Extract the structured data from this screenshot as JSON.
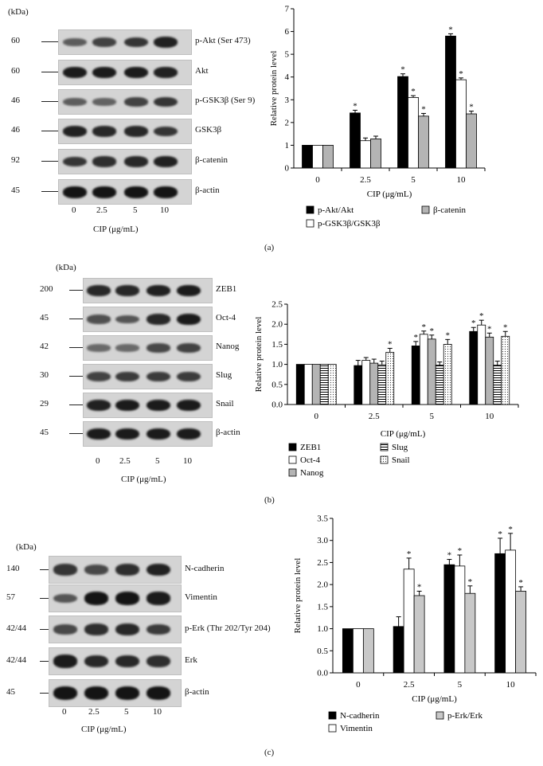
{
  "panels": [
    {
      "id": "a",
      "caption": "(a)",
      "blot": {
        "kda_header": "(kDa)",
        "rows": [
          {
            "kda": "60",
            "protein": "p-Akt (Ser 473)",
            "intensity": [
              0.45,
              0.65,
              0.75,
              0.9
            ]
          },
          {
            "kda": "60",
            "protein": "Akt",
            "intensity": [
              0.95,
              0.95,
              0.95,
              0.9
            ]
          },
          {
            "kda": "46",
            "protein": "p-GSK3β (Ser 9)",
            "intensity": [
              0.45,
              0.4,
              0.65,
              0.75
            ]
          },
          {
            "kda": "46",
            "protein": "GSK3β",
            "intensity": [
              0.9,
              0.85,
              0.85,
              0.75
            ]
          },
          {
            "kda": "92",
            "protein": "β-catenin",
            "intensity": [
              0.75,
              0.8,
              0.85,
              0.9
            ]
          },
          {
            "kda": "45",
            "protein": "β-actin",
            "intensity": [
              1,
              1,
              1,
              1
            ]
          }
        ],
        "lanes": [
          "0",
          "2.5",
          "5",
          "10"
        ],
        "xlabel": "CIP (μg/mL)"
      }
    },
    {
      "id": "b",
      "caption": "(b)",
      "blot": {
        "kda_header": "(kDa)",
        "rows": [
          {
            "kda": "200",
            "protein": "ZEB1",
            "intensity": [
              0.85,
              0.85,
              0.9,
              0.95
            ]
          },
          {
            "kda": "45",
            "protein": "Oct-4",
            "intensity": [
              0.55,
              0.5,
              0.85,
              0.95
            ]
          },
          {
            "kda": "42",
            "protein": "Nanog",
            "intensity": [
              0.35,
              0.35,
              0.6,
              0.65
            ]
          },
          {
            "kda": "30",
            "protein": "Slug",
            "intensity": [
              0.65,
              0.7,
              0.7,
              0.7
            ]
          },
          {
            "kda": "29",
            "protein": "Snail",
            "intensity": [
              0.9,
              0.95,
              0.95,
              0.95
            ]
          },
          {
            "kda": "45",
            "protein": "β-actin",
            "intensity": [
              0.95,
              0.95,
              0.95,
              0.95
            ]
          }
        ],
        "lanes": [
          "0",
          "2.5",
          "5",
          "10"
        ],
        "xlabel": "CIP (μg/mL)"
      }
    },
    {
      "id": "c",
      "caption": "(c)",
      "blot": {
        "kda_header": "(kDa)",
        "rows": [
          {
            "kda": "140",
            "protein": "N-cadherin",
            "intensity": [
              0.75,
              0.6,
              0.8,
              0.9
            ]
          },
          {
            "kda": "57",
            "protein": "Vimentin",
            "intensity": [
              0.5,
              1,
              1,
              0.95
            ]
          },
          {
            "kda": "42/44",
            "protein": "p-Erk (Thr 202/Tyr 204)",
            "intensity": [
              0.6,
              0.8,
              0.85,
              0.7
            ]
          },
          {
            "kda": "42/44",
            "protein": "Erk",
            "intensity": [
              0.95,
              0.85,
              0.85,
              0.8
            ]
          },
          {
            "kda": "45",
            "protein": "β-actin",
            "intensity": [
              1,
              1,
              1,
              1
            ]
          }
        ],
        "lanes": [
          "0",
          "2.5",
          "5",
          "10"
        ],
        "xlabel": "CIP (μg/mL)"
      }
    }
  ],
  "chart_data": [
    {
      "type": "bar",
      "panel": "a",
      "ylabel": "Relative protein level",
      "xlabel": "CIP (μg/mL)",
      "ylim": [
        0,
        7
      ],
      "yticks": [
        0,
        1,
        2,
        3,
        4,
        5,
        6,
        7
      ],
      "categories": [
        "0",
        "2.5",
        "5",
        "10"
      ],
      "series": [
        {
          "name": "p-Akt/Akt",
          "fill": "#000000",
          "pattern": "solid",
          "values": [
            1,
            2.42,
            4.02,
            5.8
          ],
          "errors": [
            0,
            0.12,
            0.12,
            0.1
          ],
          "sig": [
            false,
            true,
            true,
            true
          ]
        },
        {
          "name": "p-GSK3β/GSK3β",
          "fill": "#ffffff",
          "pattern": "solid",
          "values": [
            1,
            1.2,
            3.1,
            3.88
          ],
          "errors": [
            0,
            0.12,
            0.08,
            0.08
          ],
          "sig": [
            false,
            false,
            true,
            true
          ]
        },
        {
          "name": "β-catenin",
          "fill": "#b4b4b4",
          "pattern": "solid",
          "values": [
            1,
            1.28,
            2.28,
            2.38
          ],
          "errors": [
            0,
            0.12,
            0.12,
            0.12
          ],
          "sig": [
            false,
            false,
            true,
            true
          ]
        }
      ],
      "legend_order": [
        0,
        2,
        1
      ]
    },
    {
      "type": "bar",
      "panel": "b",
      "ylabel": "Relative protein level",
      "xlabel": "CIP (μg/mL)",
      "ylim": [
        0,
        2.5
      ],
      "yticks": [
        "0.0",
        "0.5",
        "1.0",
        "1.5",
        "2.0",
        "2.5"
      ],
      "categories": [
        "0",
        "2.5",
        "5",
        "10"
      ],
      "series": [
        {
          "name": "ZEB1",
          "fill": "#000000",
          "pattern": "solid",
          "values": [
            1,
            0.97,
            1.46,
            1.82
          ],
          "errors": [
            0,
            0.13,
            0.11,
            0.1
          ],
          "sig": [
            false,
            false,
            true,
            true
          ]
        },
        {
          "name": "Oct-4",
          "fill": "#ffffff",
          "pattern": "solid",
          "values": [
            1,
            1.1,
            1.75,
            1.98
          ],
          "errors": [
            0,
            0.07,
            0.08,
            0.12
          ],
          "sig": [
            false,
            false,
            true,
            true
          ]
        },
        {
          "name": "Nanog",
          "fill": "#b4b4b4",
          "pattern": "solid",
          "values": [
            1,
            1.03,
            1.63,
            1.68
          ],
          "errors": [
            0,
            0.1,
            0.1,
            0.1
          ],
          "sig": [
            false,
            false,
            true,
            true
          ]
        },
        {
          "name": "Slug",
          "fill": "#ffffff",
          "pattern": "hlines",
          "values": [
            1,
            0.99,
            0.98,
            0.98
          ],
          "errors": [
            0,
            0.09,
            0.08,
            0.1
          ],
          "sig": [
            false,
            false,
            false,
            false
          ]
        },
        {
          "name": "Snail",
          "fill": "#ffffff",
          "pattern": "dots",
          "values": [
            1,
            1.3,
            1.5,
            1.7
          ],
          "errors": [
            0,
            0.1,
            0.12,
            0.12
          ],
          "sig": [
            false,
            true,
            true,
            true
          ]
        }
      ],
      "legend_order": [
        0,
        3,
        1,
        4,
        2
      ]
    },
    {
      "type": "bar",
      "panel": "c",
      "ylabel": "Relative protein level",
      "xlabel": "CIP (μg/mL)",
      "ylim": [
        0,
        3.5
      ],
      "yticks": [
        "0.0",
        "0.5",
        "1.0",
        "1.5",
        "2.0",
        "2.5",
        "3.0",
        "3.5"
      ],
      "categories": [
        "0",
        "2.5",
        "5",
        "10"
      ],
      "series": [
        {
          "name": "N-cadherin",
          "fill": "#000000",
          "pattern": "solid",
          "values": [
            1,
            1.05,
            2.45,
            2.7
          ],
          "errors": [
            0,
            0.22,
            0.12,
            0.35
          ],
          "sig": [
            false,
            false,
            true,
            true
          ]
        },
        {
          "name": "Vimentin",
          "fill": "#ffffff",
          "pattern": "solid",
          "values": [
            1,
            2.35,
            2.42,
            2.78
          ],
          "errors": [
            0,
            0.25,
            0.25,
            0.38
          ],
          "sig": [
            false,
            true,
            true,
            true
          ]
        },
        {
          "name": "p-Erk/Erk",
          "fill": "#c8c8c8",
          "pattern": "solid",
          "values": [
            1,
            1.75,
            1.8,
            1.85
          ],
          "errors": [
            0,
            0.1,
            0.17,
            0.1
          ],
          "sig": [
            false,
            true,
            true,
            true
          ]
        }
      ],
      "legend_order": [
        0,
        2,
        1
      ]
    }
  ],
  "sig_mark": "*"
}
